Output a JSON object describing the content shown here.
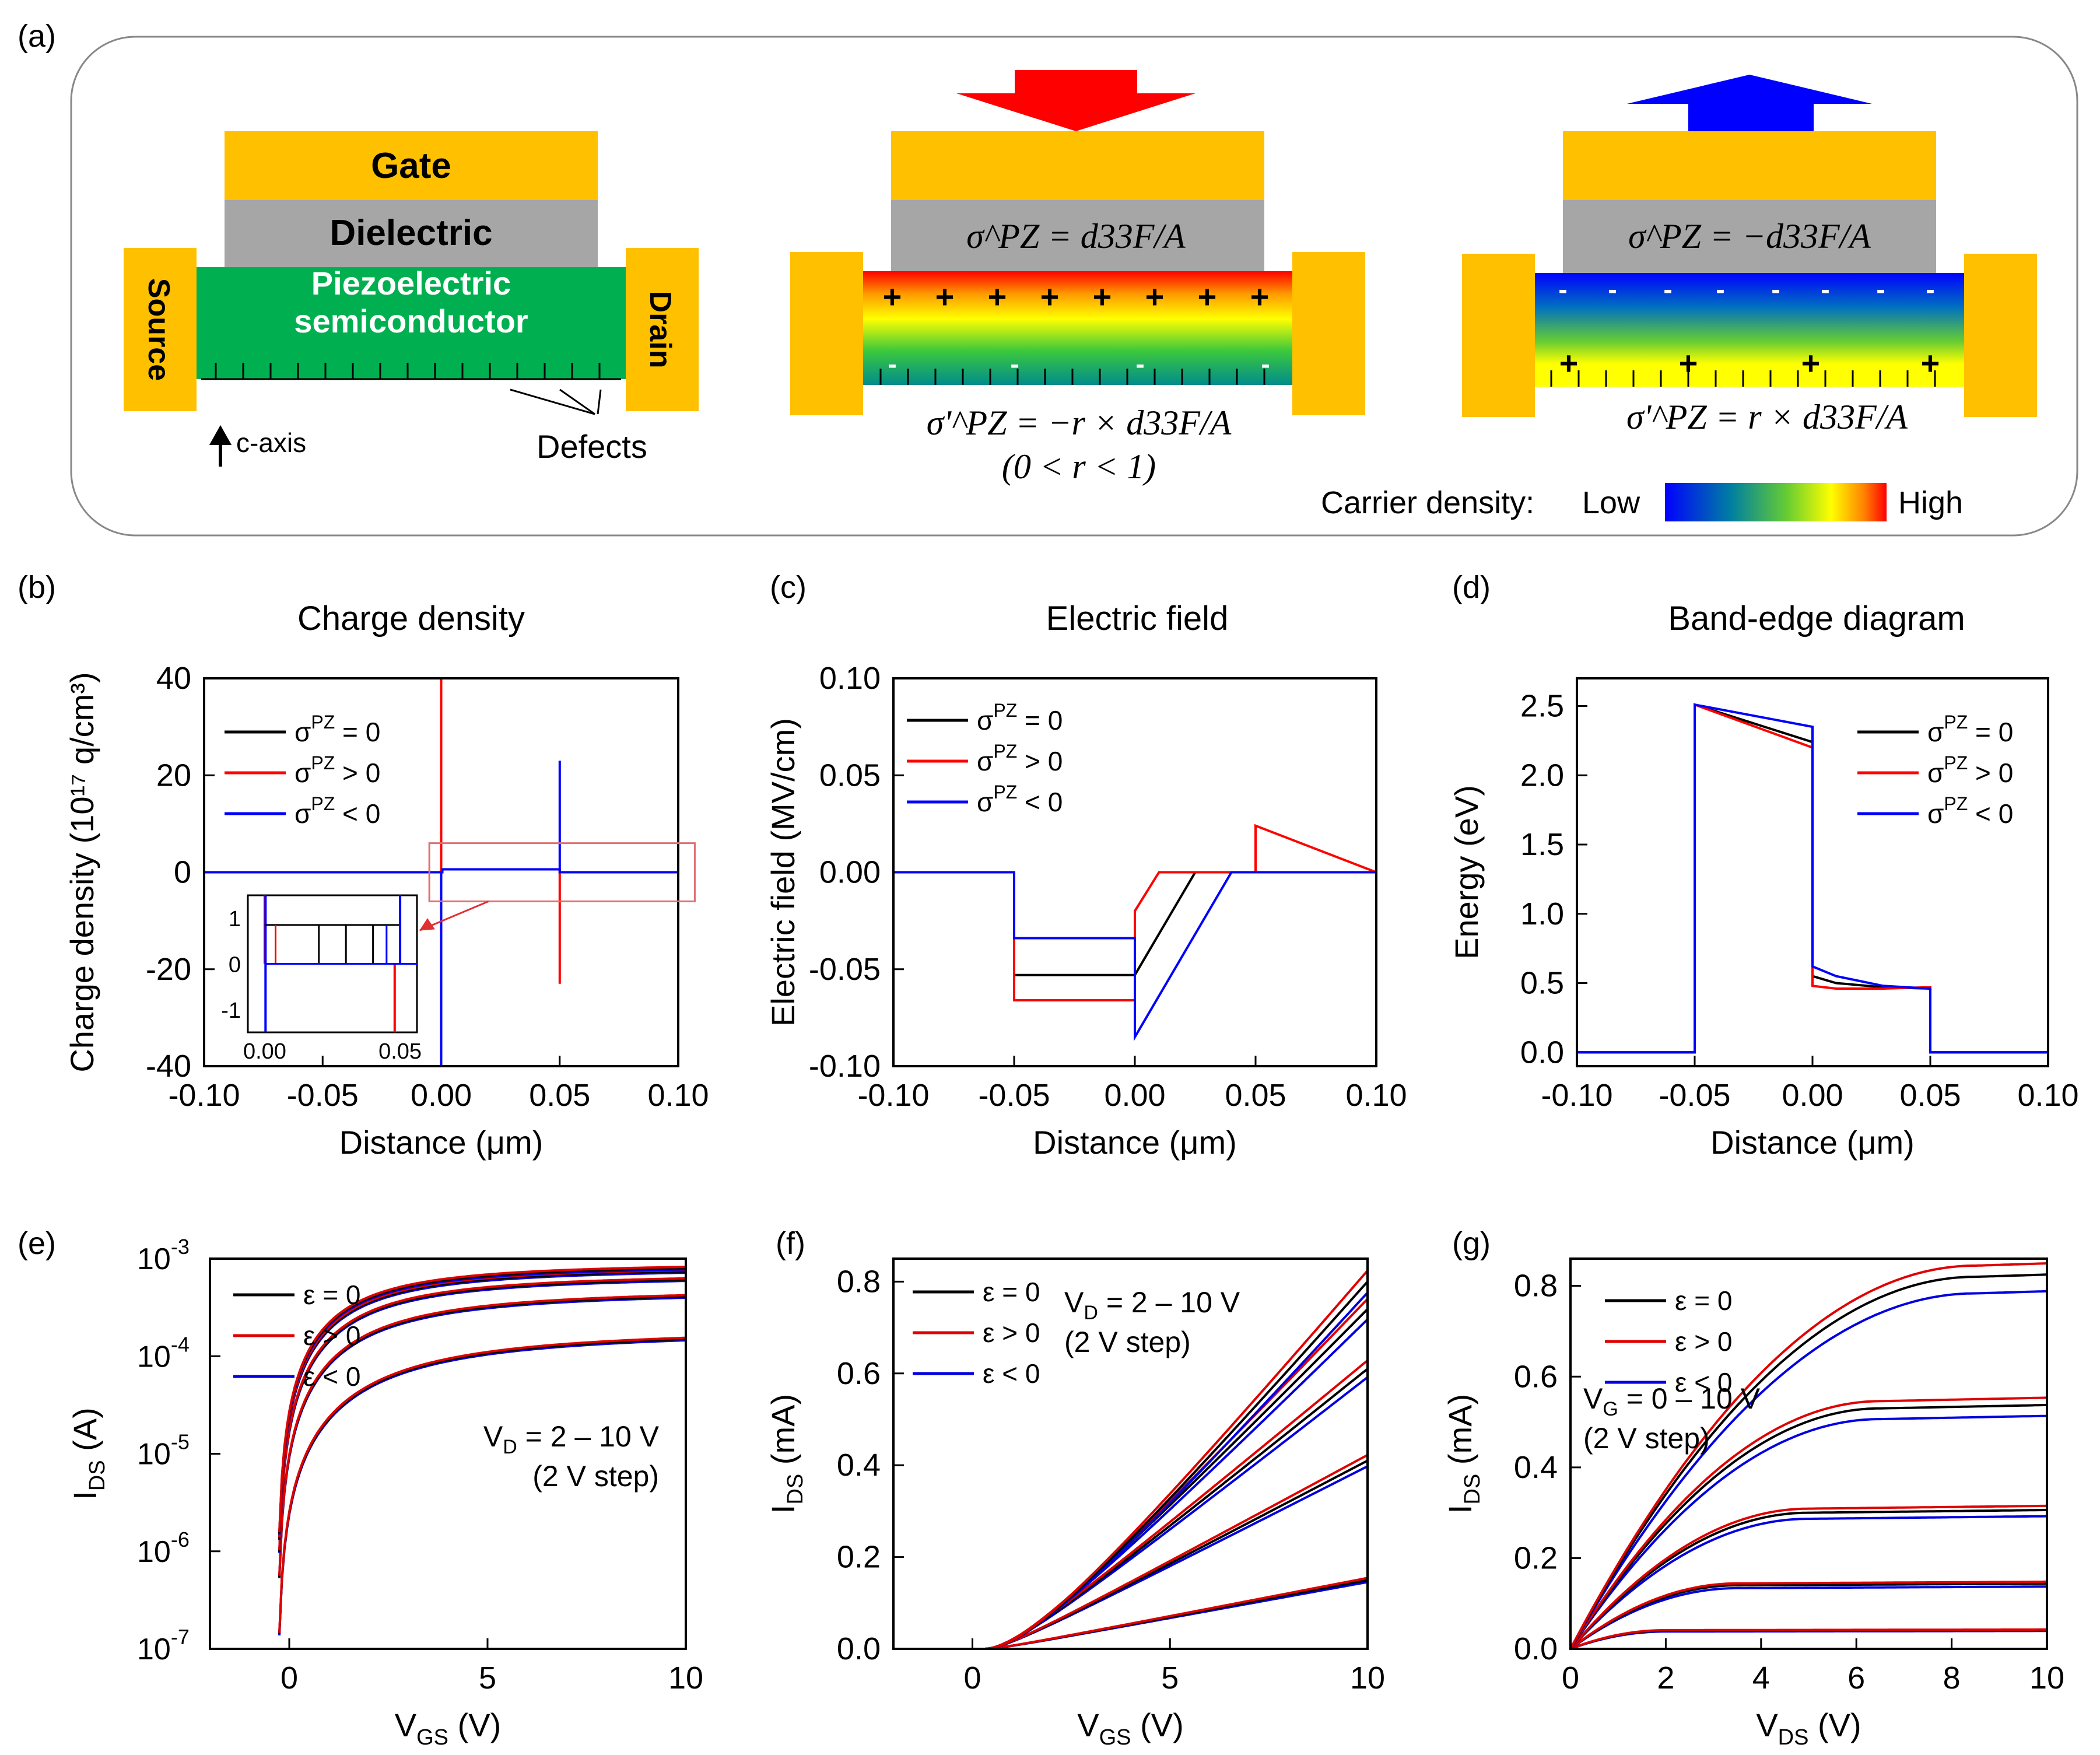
{
  "panel_labels": {
    "a": "(a)",
    "b": "(b)",
    "c": "(c)",
    "d": "(d)",
    "e": "(e)",
    "f": "(f)",
    "g": "(g)"
  },
  "schematic": {
    "device1": {
      "gate": "Gate",
      "dielectric": "Dielectric",
      "semiconductor_line1": "Piezoelectric",
      "semiconductor_line2": "semiconductor",
      "source": "Source",
      "drain": "Drain",
      "c_axis": "c-axis",
      "defects": "Defects"
    },
    "device2": {
      "sigma_top": "σ^PZ = d33F/A",
      "sigma_bottom": "σ'^PZ = −r × d33F/A",
      "condition": "(0 < r < 1)"
    },
    "device3": {
      "sigma_top": "σ^PZ = −d33F/A",
      "sigma_bottom": "σ'^PZ = r × d33F/A"
    },
    "colorbar": {
      "label": "Carrier density:",
      "low": "Low",
      "high": "High"
    },
    "colors": {
      "gold": "#FFC000",
      "gray": "#A6A6A6",
      "green": "#00B050",
      "arrow_down": "#FF0000",
      "arrow_up": "#0000FF"
    }
  },
  "chart_data": [
    {
      "id": "b",
      "type": "line",
      "title": "Charge density",
      "xlabel": "Distance (μm)",
      "ylabel": "Charge density (10¹⁷ q/cm³)",
      "xlim": [
        -0.1,
        0.1
      ],
      "ylim": [
        -40,
        40
      ],
      "xticks": [
        "-0.10",
        "-0.05",
        "0.00",
        "0.05",
        "0.10"
      ],
      "yticks": [
        "-40",
        "-20",
        "0",
        "20",
        "40"
      ],
      "legend": [
        "σPZ = 0",
        "σPZ > 0",
        "σPZ < 0"
      ],
      "series": [
        {
          "name": "σPZ = 0",
          "color": "#000000",
          "x": [
            -0.1,
            0,
            0,
            0.0005,
            0.0005,
            0.05,
            0.05,
            0.1
          ],
          "y": [
            0,
            0,
            0,
            0,
            0.6,
            0.6,
            0,
            0
          ]
        },
        {
          "name": "σPZ > 0",
          "color": "#FF0000",
          "x": [
            -0.1,
            0,
            0,
            0,
            0.0005,
            0.0005,
            0.05,
            0.05,
            0.05,
            0.1
          ],
          "y": [
            0,
            0,
            40,
            0,
            0,
            0.6,
            0.6,
            -23,
            0,
            0
          ]
        },
        {
          "name": "σPZ < 0",
          "color": "#0000FF",
          "x": [
            -0.1,
            0,
            0,
            0,
            0.0005,
            0.0005,
            0.05,
            0.05,
            0.05,
            0.1
          ],
          "y": [
            0,
            0,
            -40,
            0,
            0,
            0.6,
            0.6,
            23,
            0,
            0
          ]
        }
      ],
      "inset": {
        "xticks": [
          "0.00",
          "0.05"
        ],
        "yticks": [
          "1",
          "0",
          "-1"
        ]
      }
    },
    {
      "id": "c",
      "type": "line",
      "title": "Electric field",
      "xlabel": "Distance (μm)",
      "ylabel": "Electric field (MV/cm)",
      "xlim": [
        -0.1,
        0.1
      ],
      "ylim": [
        -0.1,
        0.1
      ],
      "xticks": [
        "-0.10",
        "-0.05",
        "0.00",
        "0.05",
        "0.10"
      ],
      "yticks": [
        "-0.10",
        "-0.05",
        "0.00",
        "0.05",
        "0.10"
      ],
      "legend": [
        "σPZ = 0",
        "σPZ > 0",
        "σPZ < 0"
      ],
      "series": [
        {
          "name": "σPZ = 0",
          "color": "#000000",
          "x": [
            -0.1,
            -0.05,
            -0.05,
            0,
            0,
            0.025,
            0.1
          ],
          "y": [
            0,
            0,
            -0.053,
            -0.053,
            -0.053,
            0,
            0
          ]
        },
        {
          "name": "σPZ > 0",
          "color": "#FF0000",
          "x": [
            -0.1,
            -0.05,
            -0.05,
            0,
            0,
            0.01,
            0.05,
            0.05,
            0.1
          ],
          "y": [
            0,
            0,
            -0.066,
            -0.066,
            -0.02,
            0,
            0,
            0.024,
            0
          ]
        },
        {
          "name": "σPZ < 0",
          "color": "#0000FF",
          "x": [
            -0.1,
            -0.05,
            -0.05,
            0,
            0,
            0.04,
            0.1
          ],
          "y": [
            0,
            0,
            -0.034,
            -0.034,
            -0.085,
            0,
            0
          ]
        }
      ]
    },
    {
      "id": "d",
      "type": "line",
      "title": "Band-edge diagram",
      "xlabel": "Distance (μm)",
      "ylabel": "Energy (eV)",
      "xlim": [
        -0.1,
        0.1
      ],
      "ylim": [
        -0.1,
        2.7
      ],
      "xticks": [
        "-0.10",
        "-0.05",
        "0.00",
        "0.05",
        "0.10"
      ],
      "yticks": [
        "0.0",
        "0.5",
        "1.0",
        "1.5",
        "2.0",
        "2.5"
      ],
      "legend": [
        "σPZ = 0",
        "σPZ > 0",
        "σPZ < 0"
      ],
      "series": [
        {
          "name": "σPZ = 0",
          "color": "#000000",
          "x": [
            -0.1,
            -0.05,
            -0.05,
            0,
            0,
            0.01,
            0.03,
            0.05,
            0.05,
            0.1
          ],
          "y": [
            0,
            0,
            2.51,
            2.24,
            0.55,
            0.5,
            0.47,
            0.46,
            0,
            0
          ]
        },
        {
          "name": "σPZ > 0",
          "color": "#FF0000",
          "x": [
            -0.1,
            -0.05,
            -0.05,
            0,
            0,
            0.01,
            0.03,
            0.05,
            0.05,
            0.1
          ],
          "y": [
            0,
            0,
            2.51,
            2.2,
            0.48,
            0.46,
            0.46,
            0.47,
            0,
            0
          ]
        },
        {
          "name": "σPZ < 0",
          "color": "#0000FF",
          "x": [
            -0.1,
            -0.05,
            -0.05,
            0,
            0,
            0.01,
            0.03,
            0.05,
            0.05,
            0.1
          ],
          "y": [
            0,
            0,
            2.51,
            2.35,
            0.62,
            0.55,
            0.48,
            0.46,
            0,
            0
          ]
        }
      ]
    },
    {
      "id": "e",
      "type": "line",
      "yscale": "log",
      "xlabel": "VGS (V)",
      "ylabel": "IDS (A)",
      "xlim": [
        -2,
        10
      ],
      "ylim": [
        1e-07,
        0.001
      ],
      "xticks": [
        "0",
        "5",
        "10"
      ],
      "yticks": [
        "10-7",
        "10-6",
        "10-5",
        "10-4",
        "10-3"
      ],
      "legend": [
        "ε = 0",
        "ε > 0",
        "ε < 0"
      ],
      "annotation": [
        "VD = 2 – 10 V",
        "(2 V step)"
      ],
      "vd_currents_mA_at_vg10": [
        0.15,
        0.41,
        0.61,
        0.74,
        0.8
      ],
      "strain_factors": {
        "ε = 0": 1.0,
        "ε > 0": 1.03,
        "ε < 0": 0.97
      },
      "threshold_V": -0.3
    },
    {
      "id": "f",
      "type": "line",
      "xlabel": "VGS (V)",
      "ylabel": "IDS (mA)",
      "xlim": [
        -2,
        10
      ],
      "ylim": [
        0,
        0.85
      ],
      "xticks": [
        "0",
        "5",
        "10"
      ],
      "yticks": [
        "0.0",
        "0.2",
        "0.4",
        "0.6",
        "0.8"
      ],
      "legend": [
        "ε = 0",
        "ε > 0",
        "ε < 0"
      ],
      "annotation": [
        "VD = 2 – 10 V",
        "(2 V step)"
      ],
      "vd_currents_mA_at_vg10": [
        0.15,
        0.41,
        0.61,
        0.74,
        0.8
      ],
      "strain_factors": {
        "ε = 0": 1.0,
        "ε > 0": 1.03,
        "ε < 0": 0.97
      }
    },
    {
      "id": "g",
      "type": "line",
      "xlabel": "VDS (V)",
      "ylabel": "IDS (mA)",
      "xlim": [
        0,
        10
      ],
      "ylim": [
        0,
        0.86
      ],
      "xticks": [
        "0",
        "2",
        "4",
        "6",
        "8",
        "10"
      ],
      "yticks": [
        "0.0",
        "0.2",
        "0.4",
        "0.6",
        "0.8"
      ],
      "legend": [
        "ε = 0",
        "ε > 0",
        "ε < 0"
      ],
      "annotation": [
        "VG = 0 – 10 V",
        "(2 V step)"
      ],
      "vg_sat_mA": [
        0.04,
        0.14,
        0.3,
        0.53,
        0.82
      ],
      "vg_vsat_V": [
        2.0,
        3.5,
        5.0,
        6.5,
        8.5
      ],
      "strain_factors": {
        "ε = 0": 1.0,
        "ε > 0": 1.03,
        "ε < 0": 0.97
      }
    }
  ]
}
